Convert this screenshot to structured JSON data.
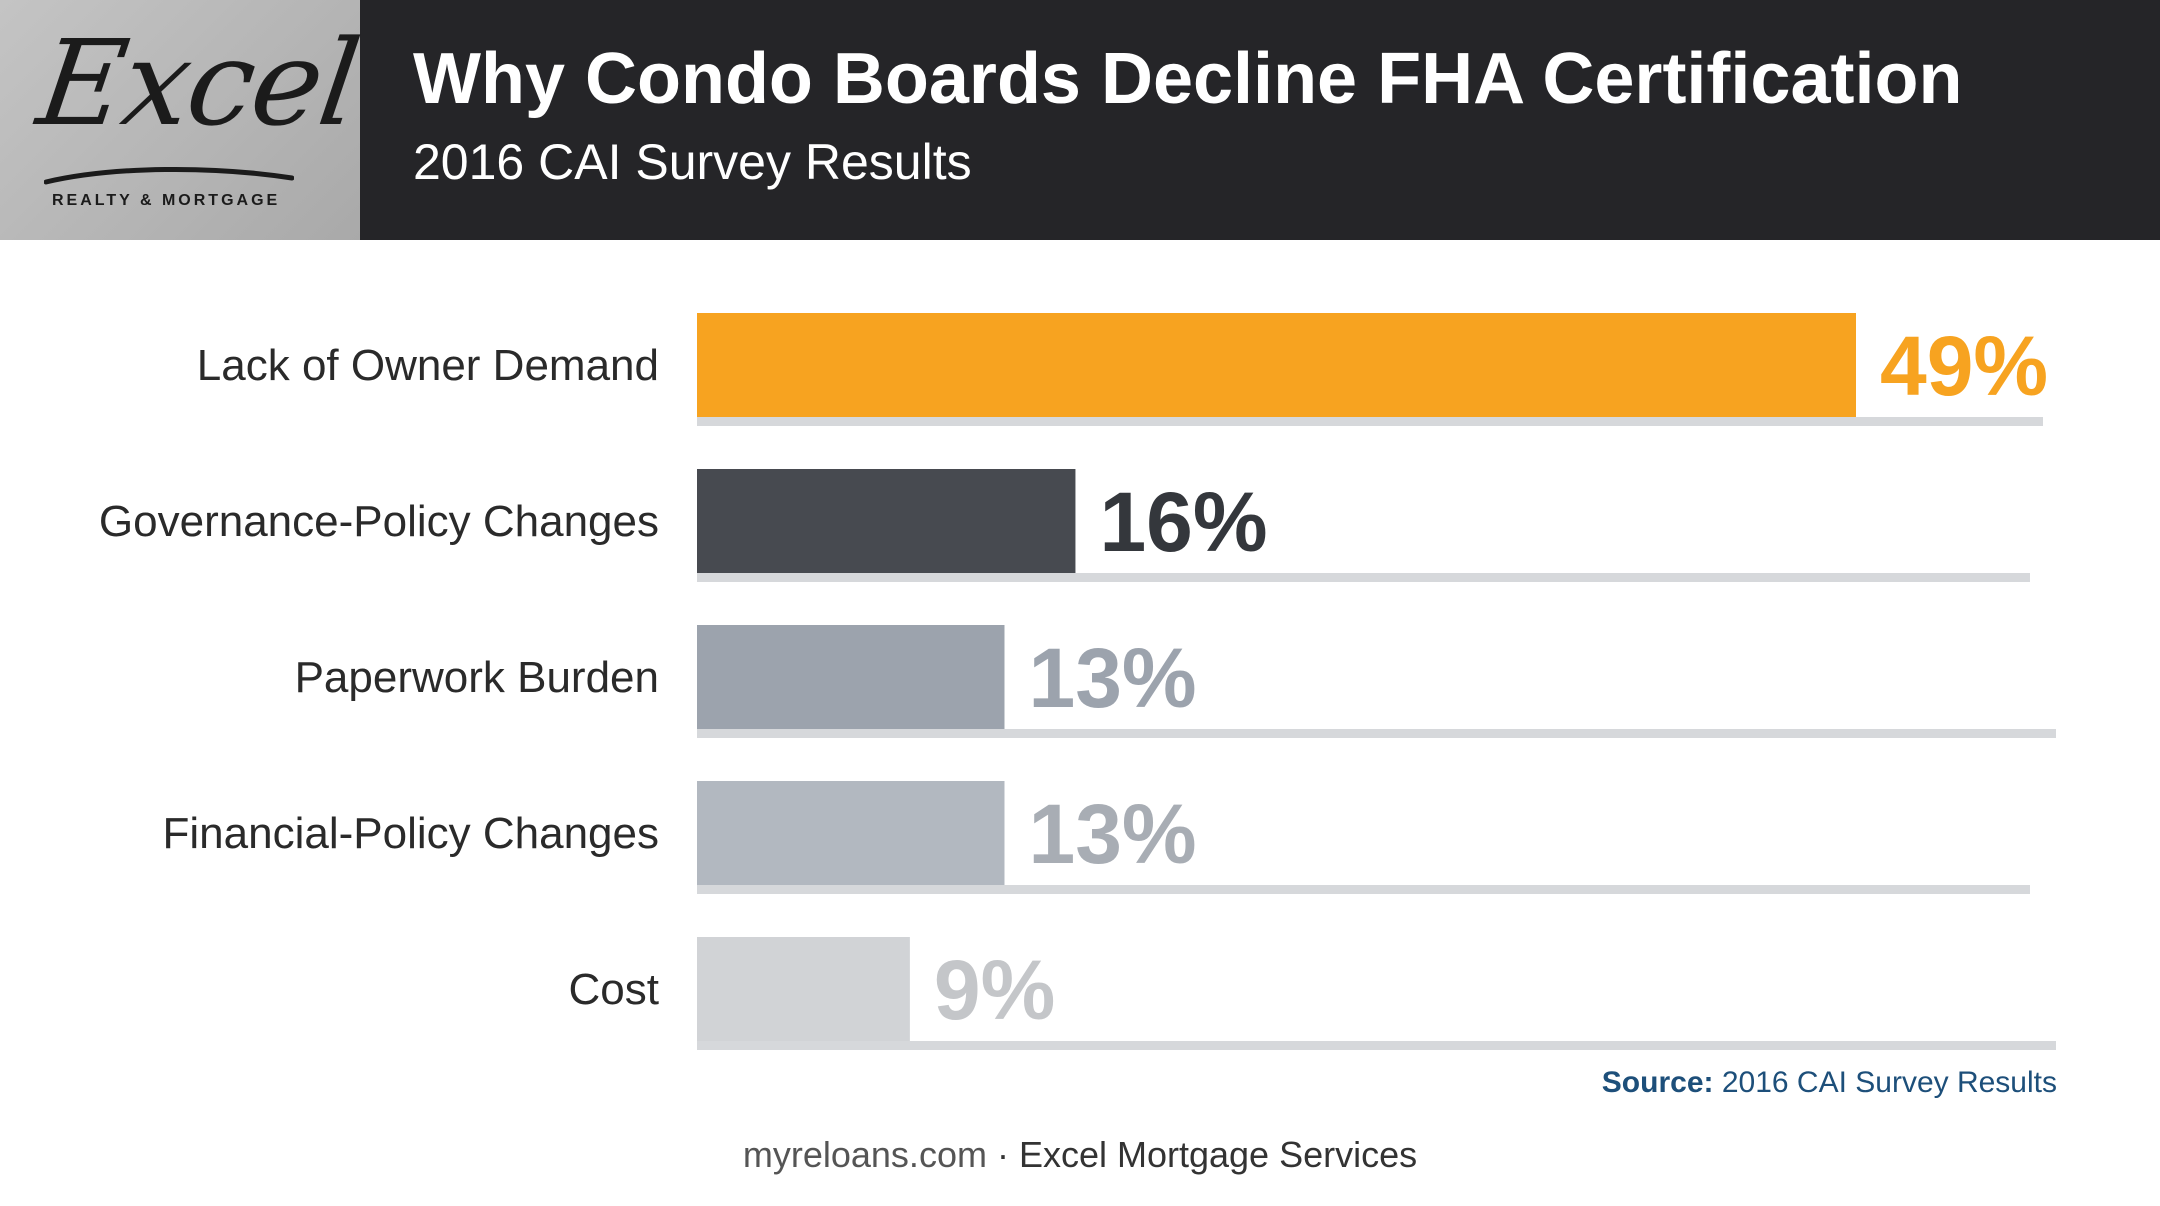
{
  "brand": {
    "logo_text": "Excel",
    "tagline": "REALTY & MORTGAGE"
  },
  "header": {
    "title": "Why Condo Boards Decline FHA Certification",
    "subtitle": "2016 CAI Survey Results"
  },
  "chart_data": {
    "type": "bar",
    "orientation": "horizontal",
    "categories": [
      "Lack of Owner Demand",
      "Governance-Policy Changes",
      "Paperwork Burden",
      "Financial-Policy Changes",
      "Cost"
    ],
    "values": [
      49,
      16,
      13,
      13,
      9
    ],
    "value_labels": [
      "49%",
      "16%",
      "13%",
      "13%",
      "9%"
    ],
    "bar_colors": [
      "#f7a320",
      "#474a50",
      "#9ca3ad",
      "#b2b8c0",
      "#d1d3d6"
    ],
    "label_colors": [
      "#f7a320",
      "#34373c",
      "#9ca3ad",
      "#a8adb4",
      "#c4c6c9"
    ],
    "xlim": [
      0,
      57
    ]
  },
  "source": {
    "lead": "Source:",
    "text": " 2016 CAI Survey Results"
  },
  "footer": {
    "site": "myreloans.com",
    "sep": " · ",
    "company": "Excel Mortgage Services"
  }
}
